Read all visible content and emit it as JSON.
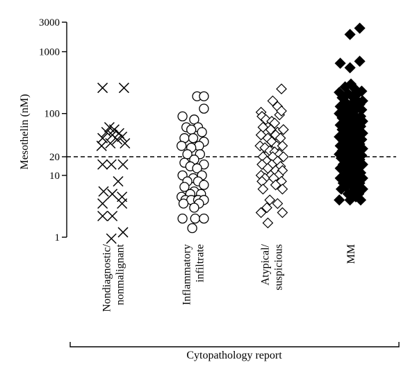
{
  "chart_data": {
    "type": "scatter",
    "title": "",
    "ylabel": "Mesothelin (nM)",
    "xlabel": "Cytopathology report",
    "yscale": "log",
    "ylim": [
      1,
      3000
    ],
    "yticks": [
      1,
      10,
      20,
      100,
      1000,
      3000
    ],
    "ytick_labels": [
      "1",
      "10",
      "20",
      "100",
      "1000",
      "3000"
    ],
    "reference_line": {
      "y": 20,
      "style": "dashed"
    },
    "grid": false,
    "legend": "none",
    "categories": [
      {
        "lines": [
          "Nondiagnostic/",
          "nonmalignant"
        ]
      },
      {
        "lines": [
          "Inflammatory",
          "infiltrate"
        ]
      },
      {
        "lines": [
          "Atypical/",
          "suspicious"
        ]
      },
      {
        "lines": [
          "MM"
        ]
      }
    ],
    "series": [
      {
        "category": "Nondiagnostic/nonmalignant",
        "marker": "x",
        "points": [
          [
            -0.55,
            260
          ],
          [
            0.55,
            260
          ],
          [
            -0.2,
            60
          ],
          [
            0.05,
            55
          ],
          [
            -0.35,
            50
          ],
          [
            0.3,
            48
          ],
          [
            -0.05,
            45
          ],
          [
            0.45,
            42
          ],
          [
            -0.55,
            40
          ],
          [
            0.2,
            38
          ],
          [
            -0.15,
            33
          ],
          [
            0.6,
            33
          ],
          [
            -0.6,
            30
          ],
          [
            -0.55,
            15
          ],
          [
            -0.1,
            15
          ],
          [
            0.5,
            15
          ],
          [
            0.25,
            8
          ],
          [
            -0.5,
            5.5
          ],
          [
            -0.05,
            5
          ],
          [
            0.45,
            4.5
          ],
          [
            -0.55,
            3.5
          ],
          [
            0.45,
            3.5
          ],
          [
            -0.55,
            2.2
          ],
          [
            -0.05,
            2.2
          ],
          [
            0.5,
            1.2
          ],
          [
            -0.1,
            0.95
          ]
        ]
      },
      {
        "category": "Inflammatory infiltrate",
        "marker": "circle-open",
        "points": [
          [
            0.2,
            190
          ],
          [
            0.55,
            190
          ],
          [
            0.55,
            120
          ],
          [
            -0.55,
            90
          ],
          [
            0.05,
            80
          ],
          [
            -0.35,
            60
          ],
          [
            0.25,
            60
          ],
          [
            -0.1,
            55
          ],
          [
            0.45,
            50
          ],
          [
            -0.45,
            40
          ],
          [
            0.0,
            40
          ],
          [
            0.55,
            35
          ],
          [
            -0.6,
            30
          ],
          [
            0.3,
            30
          ],
          [
            -0.1,
            28
          ],
          [
            -0.3,
            22
          ],
          [
            0.35,
            22
          ],
          [
            0.05,
            18
          ],
          [
            -0.45,
            16
          ],
          [
            0.55,
            15
          ],
          [
            -0.15,
            14
          ],
          [
            0.2,
            13
          ],
          [
            -0.55,
            10
          ],
          [
            0.45,
            10
          ],
          [
            0.0,
            9
          ],
          [
            -0.3,
            8
          ],
          [
            0.25,
            8
          ],
          [
            0.55,
            7
          ],
          [
            -0.45,
            6.5
          ],
          [
            0.05,
            5.5
          ],
          [
            -0.15,
            5
          ],
          [
            0.4,
            5
          ],
          [
            -0.6,
            4.5
          ],
          [
            -0.4,
            4
          ],
          [
            -0.1,
            4
          ],
          [
            0.25,
            4
          ],
          [
            0.55,
            4
          ],
          [
            -0.5,
            3.5
          ],
          [
            0.3,
            3.5
          ],
          [
            0.05,
            3
          ],
          [
            -0.55,
            2
          ],
          [
            0.1,
            2
          ],
          [
            0.55,
            2
          ],
          [
            -0.05,
            1.4
          ]
        ]
      },
      {
        "category": "Atypical/suspicious",
        "marker": "diamond-open",
        "points": [
          [
            0.5,
            250
          ],
          [
            0.05,
            160
          ],
          [
            0.3,
            130
          ],
          [
            -0.55,
            105
          ],
          [
            -0.5,
            90
          ],
          [
            0.4,
            95
          ],
          [
            0.5,
            110
          ],
          [
            -0.3,
            80
          ],
          [
            0.0,
            75
          ],
          [
            0.15,
            70
          ],
          [
            -0.45,
            60
          ],
          [
            -0.05,
            55
          ],
          [
            0.3,
            50
          ],
          [
            0.6,
            55
          ],
          [
            -0.55,
            45
          ],
          [
            0.2,
            45
          ],
          [
            -0.2,
            40
          ],
          [
            0.45,
            40
          ],
          [
            0.0,
            35
          ],
          [
            -0.6,
            30
          ],
          [
            -0.35,
            28
          ],
          [
            0.25,
            30
          ],
          [
            0.55,
            30
          ],
          [
            -0.1,
            25
          ],
          [
            0.15,
            24
          ],
          [
            0.4,
            22
          ],
          [
            -0.45,
            20
          ],
          [
            0.05,
            20
          ],
          [
            0.6,
            20
          ],
          [
            -0.25,
            17
          ],
          [
            0.3,
            17
          ],
          [
            -0.5,
            15
          ],
          [
            0.0,
            15
          ],
          [
            0.45,
            14
          ],
          [
            -0.2,
            13
          ],
          [
            0.2,
            12
          ],
          [
            0.55,
            12
          ],
          [
            -0.55,
            10
          ],
          [
            -0.05,
            10
          ],
          [
            0.35,
            10
          ],
          [
            -0.35,
            9
          ],
          [
            0.1,
            9
          ],
          [
            -0.5,
            8
          ],
          [
            0.5,
            8
          ],
          [
            0.2,
            7
          ],
          [
            -0.45,
            6
          ],
          [
            0.55,
            6
          ],
          [
            -0.1,
            4
          ],
          [
            0.3,
            3.5
          ],
          [
            -0.25,
            3
          ],
          [
            0.55,
            2.5
          ],
          [
            -0.55,
            2.5
          ],
          [
            -0.2,
            1.7
          ]
        ]
      },
      {
        "category": "MM",
        "marker": "diamond-filled",
        "points": [
          [
            0.45,
            2400
          ],
          [
            -0.05,
            1900
          ],
          [
            0.45,
            700
          ],
          [
            -0.55,
            650
          ],
          [
            -0.05,
            550
          ],
          [
            0.0,
            300
          ],
          [
            0.15,
            260
          ],
          [
            -0.3,
            270
          ],
          [
            0.55,
            230
          ],
          [
            -0.6,
            220
          ],
          [
            -0.15,
            210
          ],
          [
            0.35,
            210
          ],
          [
            0.05,
            190
          ],
          [
            -0.45,
            180
          ],
          [
            0.25,
            170
          ],
          [
            0.6,
            160
          ],
          [
            -0.25,
            150
          ],
          [
            0.0,
            140
          ],
          [
            0.45,
            140
          ],
          [
            -0.55,
            130
          ],
          [
            -0.1,
            125
          ],
          [
            0.3,
            120
          ],
          [
            0.55,
            115
          ],
          [
            -0.4,
            110
          ],
          [
            0.1,
            105
          ],
          [
            -0.6,
            100
          ],
          [
            -0.2,
            95
          ],
          [
            0.2,
            92
          ],
          [
            0.5,
            90
          ],
          [
            -0.45,
            85
          ],
          [
            -0.05,
            80
          ],
          [
            0.35,
            80
          ],
          [
            0.6,
            75
          ],
          [
            -0.3,
            72
          ],
          [
            0.1,
            70
          ],
          [
            -0.55,
            65
          ],
          [
            0.25,
            65
          ],
          [
            0.5,
            62
          ],
          [
            -0.15,
            58
          ],
          [
            -0.45,
            55
          ],
          [
            0.05,
            52
          ],
          [
            0.4,
            52
          ],
          [
            0.6,
            48
          ],
          [
            -0.25,
            46
          ],
          [
            0.2,
            45
          ],
          [
            -0.6,
            42
          ],
          [
            -0.05,
            40
          ],
          [
            0.35,
            40
          ],
          [
            0.55,
            38
          ],
          [
            -0.4,
            36
          ],
          [
            0.1,
            35
          ],
          [
            -0.15,
            33
          ],
          [
            0.45,
            32
          ],
          [
            -0.55,
            30
          ],
          [
            0.25,
            30
          ],
          [
            0.0,
            28
          ],
          [
            -0.3,
            27
          ],
          [
            0.6,
            27
          ],
          [
            -0.45,
            25
          ],
          [
            0.15,
            25
          ],
          [
            0.4,
            24
          ],
          [
            -0.1,
            23
          ],
          [
            -0.6,
            22
          ],
          [
            0.3,
            22
          ],
          [
            0.55,
            21
          ],
          [
            -0.25,
            20
          ],
          [
            0.05,
            20
          ],
          [
            -0.5,
            19
          ],
          [
            0.45,
            18
          ],
          [
            0.2,
            17
          ],
          [
            -0.15,
            16
          ],
          [
            -0.4,
            15
          ],
          [
            0.6,
            15
          ],
          [
            0.0,
            14
          ],
          [
            0.35,
            14
          ],
          [
            -0.55,
            13
          ],
          [
            -0.2,
            12
          ],
          [
            0.15,
            12
          ],
          [
            0.5,
            11
          ],
          [
            -0.35,
            10
          ],
          [
            0.05,
            10
          ],
          [
            0.3,
            9.5
          ],
          [
            -0.55,
            9
          ],
          [
            0.6,
            9
          ],
          [
            -0.1,
            8.5
          ],
          [
            0.2,
            8
          ],
          [
            -0.4,
            7.5
          ],
          [
            0.45,
            7.5
          ],
          [
            0.0,
            7
          ],
          [
            -0.25,
            6.5
          ],
          [
            0.3,
            6
          ],
          [
            -0.5,
            6
          ],
          [
            0.6,
            6
          ],
          [
            0.1,
            5.5
          ],
          [
            -0.15,
            5
          ],
          [
            0.4,
            5
          ],
          [
            -0.6,
            4
          ],
          [
            -0.05,
            4
          ],
          [
            0.25,
            4.5
          ],
          [
            0.5,
            4
          ]
        ]
      }
    ]
  }
}
